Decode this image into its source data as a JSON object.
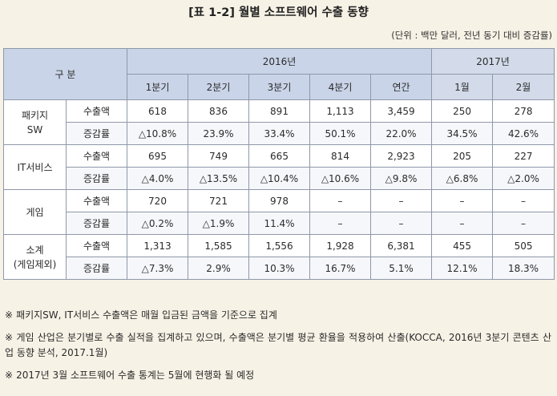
{
  "title": "[표 1-2] 월별 소프트웨어 수출 동향",
  "unit": "(단위 : 백만 달러, 전년 동기 대비 증감률)",
  "table": {
    "header": {
      "division": "구 분",
      "year2016": "2016년",
      "year2017": "2017년",
      "q1": "1분기",
      "q2": "2분기",
      "q3": "3분기",
      "q4": "4분기",
      "annual": "연간",
      "jan": "1월",
      "feb": "2월"
    },
    "rows": [
      {
        "category": [
          "패키지",
          "SW"
        ],
        "export_label": "수출액",
        "change_label": "증감률",
        "export": [
          "618",
          "836",
          "891",
          "1,113",
          "3,459",
          "250",
          "278"
        ],
        "change": [
          "△10.8%",
          "23.9%",
          "33.4%",
          "50.1%",
          "22.0%",
          "34.5%",
          "42.6%"
        ]
      },
      {
        "category": [
          "IT서비스",
          ""
        ],
        "export_label": "수출액",
        "change_label": "증감률",
        "export": [
          "695",
          "749",
          "665",
          "814",
          "2,923",
          "205",
          "227"
        ],
        "change": [
          "△4.0%",
          "△13.5%",
          "△10.4%",
          "△10.6%",
          "△9.8%",
          "△6.8%",
          "△2.0%"
        ]
      },
      {
        "category": [
          "게임",
          ""
        ],
        "export_label": "수출액",
        "change_label": "증감률",
        "export": [
          "720",
          "721",
          "978",
          "–",
          "–",
          "–",
          "–"
        ],
        "change": [
          "△0.2%",
          "△1.9%",
          "11.4%",
          "–",
          "–",
          "–",
          "–"
        ]
      },
      {
        "category": [
          "소계",
          "(게임제외)"
        ],
        "export_label": "수출액",
        "change_label": "증감률",
        "export": [
          "1,313",
          "1,585",
          "1,556",
          "1,928",
          "6,381",
          "455",
          "505"
        ],
        "change": [
          "△7.3%",
          "2.9%",
          "10.3%",
          "16.7%",
          "5.1%",
          "12.1%",
          "18.3%"
        ]
      }
    ]
  },
  "notes": [
    {
      "mark": "※",
      "text": "패키지SW, IT서비스 수출액은 매월 입금된 금액을 기준으로 집계"
    },
    {
      "mark": "※",
      "text": "게임 산업은 분기별로 수출 실적을 집계하고 있으며, 수출액은 분기별 평균 환율을 적용하여 산출(KOCCA, 2016년 3분기 콘텐츠 산업 동향 분석, 2017.1월)"
    },
    {
      "mark": "※",
      "text": "2017년 3월 소프트웨어 수출 통계는 5월에 현행화 될 예정"
    }
  ]
}
